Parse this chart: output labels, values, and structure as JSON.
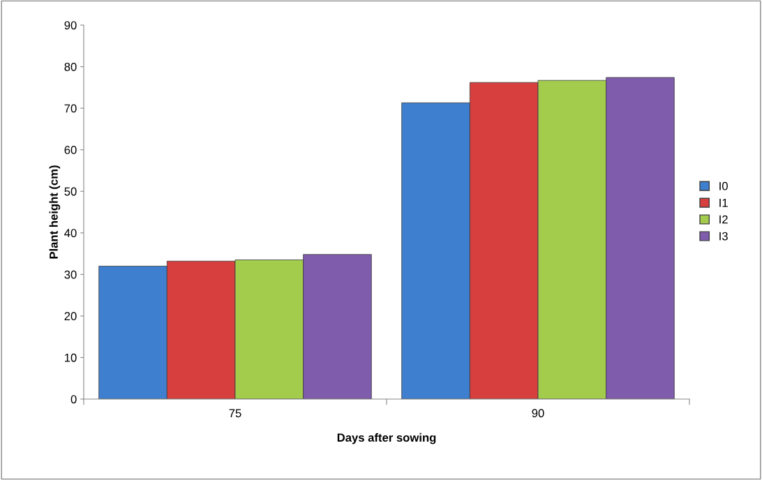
{
  "chart_data": {
    "type": "bar",
    "xlabel": "Days after sowing",
    "ylabel": "Plant height (cm)",
    "categories": [
      "75",
      "90"
    ],
    "series": [
      {
        "name": "I0",
        "color": "#3f7fcf",
        "values": [
          32.0,
          71.3
        ]
      },
      {
        "name": "I1",
        "color": "#d63f3e",
        "values": [
          33.2,
          76.2
        ]
      },
      {
        "name": "I2",
        "color": "#a3cc4c",
        "values": [
          33.5,
          76.7
        ]
      },
      {
        "name": "I3",
        "color": "#7f5cac",
        "values": [
          34.8,
          77.4
        ]
      }
    ],
    "ylim": [
      0,
      90
    ],
    "yticks": [
      0,
      10,
      20,
      30,
      40,
      50,
      60,
      70,
      80,
      90
    ],
    "grid": false,
    "legend": "right"
  }
}
